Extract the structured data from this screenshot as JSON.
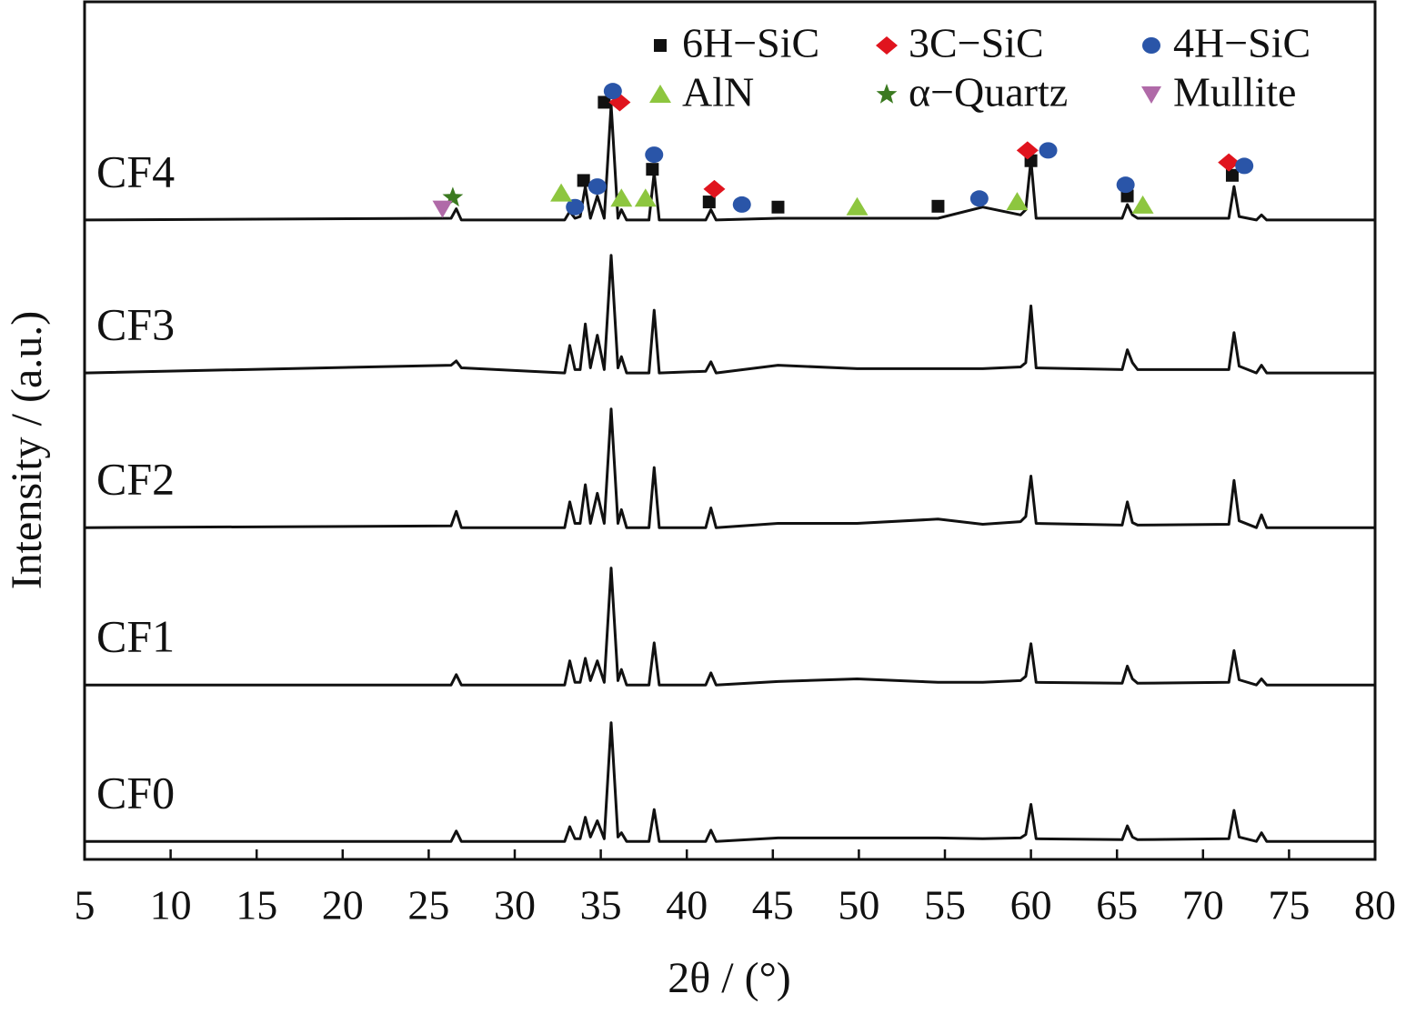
{
  "chart_data": {
    "type": "line",
    "x_label": "2θ / (°)",
    "y_label": "Intensity / (a.u.)",
    "xlim": [
      5,
      80
    ],
    "xticks": [
      5,
      10,
      15,
      20,
      25,
      30,
      35,
      40,
      45,
      50,
      55,
      60,
      65,
      70,
      75,
      80
    ],
    "ylim": [
      0,
      100
    ],
    "x": [
      5,
      26.3,
      26.6,
      26.9,
      32.9,
      33.2,
      33.5,
      33.8,
      34.1,
      34.4,
      34.8,
      35.2,
      35.6,
      36.0,
      36.2,
      36.5,
      37.8,
      38.1,
      38.4,
      41.1,
      41.4,
      41.7,
      45.3,
      49.9,
      54.6,
      57.2,
      59.4,
      59.7,
      60.0,
      60.3,
      65.3,
      65.6,
      65.9,
      66.2,
      71.5,
      71.8,
      72.1,
      73.1,
      73.4,
      73.7,
      80
    ],
    "series": [
      {
        "name": "CF0",
        "color": "#111111",
        "values": [
          2.1,
          2.1,
          3.3,
          2.1,
          2.1,
          3.8,
          2.4,
          2.4,
          4.9,
          2.6,
          4.5,
          2.4,
          15.9,
          2.6,
          3.1,
          2.1,
          2.1,
          5.8,
          2.1,
          2.1,
          3.4,
          2.1,
          2.5,
          2.5,
          2.5,
          2.4,
          2.5,
          2.9,
          6.4,
          2.4,
          2.3,
          3.9,
          2.6,
          2.3,
          2.4,
          5.7,
          2.6,
          2.1,
          3.1,
          2.1,
          2.1
        ]
      },
      {
        "name": "CF1",
        "color": "#111111",
        "values": [
          20.3,
          20.3,
          21.5,
          20.3,
          20.3,
          23.1,
          20.6,
          20.6,
          23.4,
          20.8,
          23.1,
          20.6,
          33.9,
          20.8,
          22.1,
          20.3,
          20.3,
          25.2,
          20.3,
          20.3,
          21.7,
          20.3,
          20.7,
          21.0,
          20.6,
          20.6,
          20.8,
          21.3,
          25.1,
          20.6,
          20.5,
          22.5,
          21.0,
          20.5,
          20.6,
          24.3,
          20.9,
          20.3,
          21.0,
          20.3,
          20.3
        ]
      },
      {
        "name": "CF2",
        "color": "#111111",
        "values": [
          38.6,
          38.8,
          40.5,
          38.6,
          38.6,
          41.6,
          39.1,
          39.1,
          43.6,
          39.1,
          42.6,
          39.1,
          52.4,
          39.1,
          40.7,
          38.6,
          38.6,
          45.6,
          38.6,
          38.6,
          40.9,
          38.6,
          39.1,
          39.1,
          39.6,
          39.0,
          39.3,
          39.9,
          44.6,
          39.1,
          38.9,
          41.6,
          39.2,
          38.9,
          39.0,
          44.1,
          39.4,
          38.6,
          40.1,
          38.6,
          38.6
        ]
      },
      {
        "name": "CF3",
        "color": "#111111",
        "values": [
          56.6,
          57.5,
          58.0,
          57.2,
          56.6,
          59.8,
          57.0,
          57.0,
          62.3,
          57.2,
          61.0,
          57.0,
          70.3,
          57.2,
          58.5,
          56.6,
          56.6,
          63.9,
          56.6,
          56.8,
          57.9,
          56.6,
          57.5,
          57.1,
          57.1,
          57.1,
          57.3,
          57.8,
          64.4,
          57.2,
          57.0,
          59.3,
          57.8,
          57.0,
          57.0,
          61.3,
          57.4,
          56.6,
          57.5,
          56.6,
          56.6
        ]
      },
      {
        "name": "CF4",
        "color": "#111111",
        "values": [
          74.4,
          74.6,
          75.7,
          74.4,
          74.4,
          75.4,
          74.6,
          74.8,
          78.3,
          74.6,
          77.2,
          74.6,
          87.8,
          74.6,
          75.6,
          74.4,
          74.4,
          79.9,
          74.4,
          74.4,
          75.6,
          74.4,
          74.6,
          74.6,
          74.6,
          75.9,
          75.0,
          75.6,
          81.4,
          74.6,
          74.6,
          76.2,
          75.0,
          74.6,
          74.6,
          78.3,
          74.8,
          74.4,
          75.0,
          74.4,
          74.4
        ]
      }
    ],
    "phases": [
      {
        "name": "6H−SiC",
        "shape": "square",
        "color": "#111111",
        "x": [
          35.2,
          34.0,
          38.0,
          41.3,
          45.3,
          54.6,
          60.0,
          65.6,
          71.7
        ],
        "y": [
          88.1,
          79.0,
          80.3,
          76.5,
          75.9,
          76.0,
          81.3,
          77.2,
          79.6
        ]
      },
      {
        "name": "3C−SiC",
        "shape": "diamond",
        "color": "#e0141e",
        "x": [
          36.1,
          41.6,
          59.8,
          71.5
        ],
        "y": [
          88.1,
          78.0,
          82.5,
          81.1
        ]
      },
      {
        "name": "4H−SiC",
        "shape": "circle",
        "color": "#2a55a8",
        "x": [
          35.7,
          33.5,
          34.8,
          38.1,
          43.2,
          57.0,
          61.0,
          65.5,
          72.4
        ],
        "y": [
          89.4,
          75.9,
          78.3,
          82.0,
          76.2,
          76.9,
          82.5,
          78.5,
          80.7
        ]
      },
      {
        "name": "AlN",
        "shape": "triangle",
        "color": "#8dc63f",
        "x": [
          32.7,
          36.2,
          37.6,
          49.9,
          59.2,
          66.5
        ],
        "y": [
          77.5,
          76.9,
          76.9,
          75.9,
          76.5,
          76.1
        ]
      },
      {
        "name": "α−Quartz",
        "shape": "star",
        "color": "#3b7a20",
        "x": [
          26.4
        ],
        "y": [
          77.0
        ]
      },
      {
        "name": "Mullite",
        "shape": "triangle-down",
        "color": "#b06aa8",
        "x": [
          25.8
        ],
        "y": [
          75.7
        ]
      }
    ],
    "legend": "top-right"
  }
}
